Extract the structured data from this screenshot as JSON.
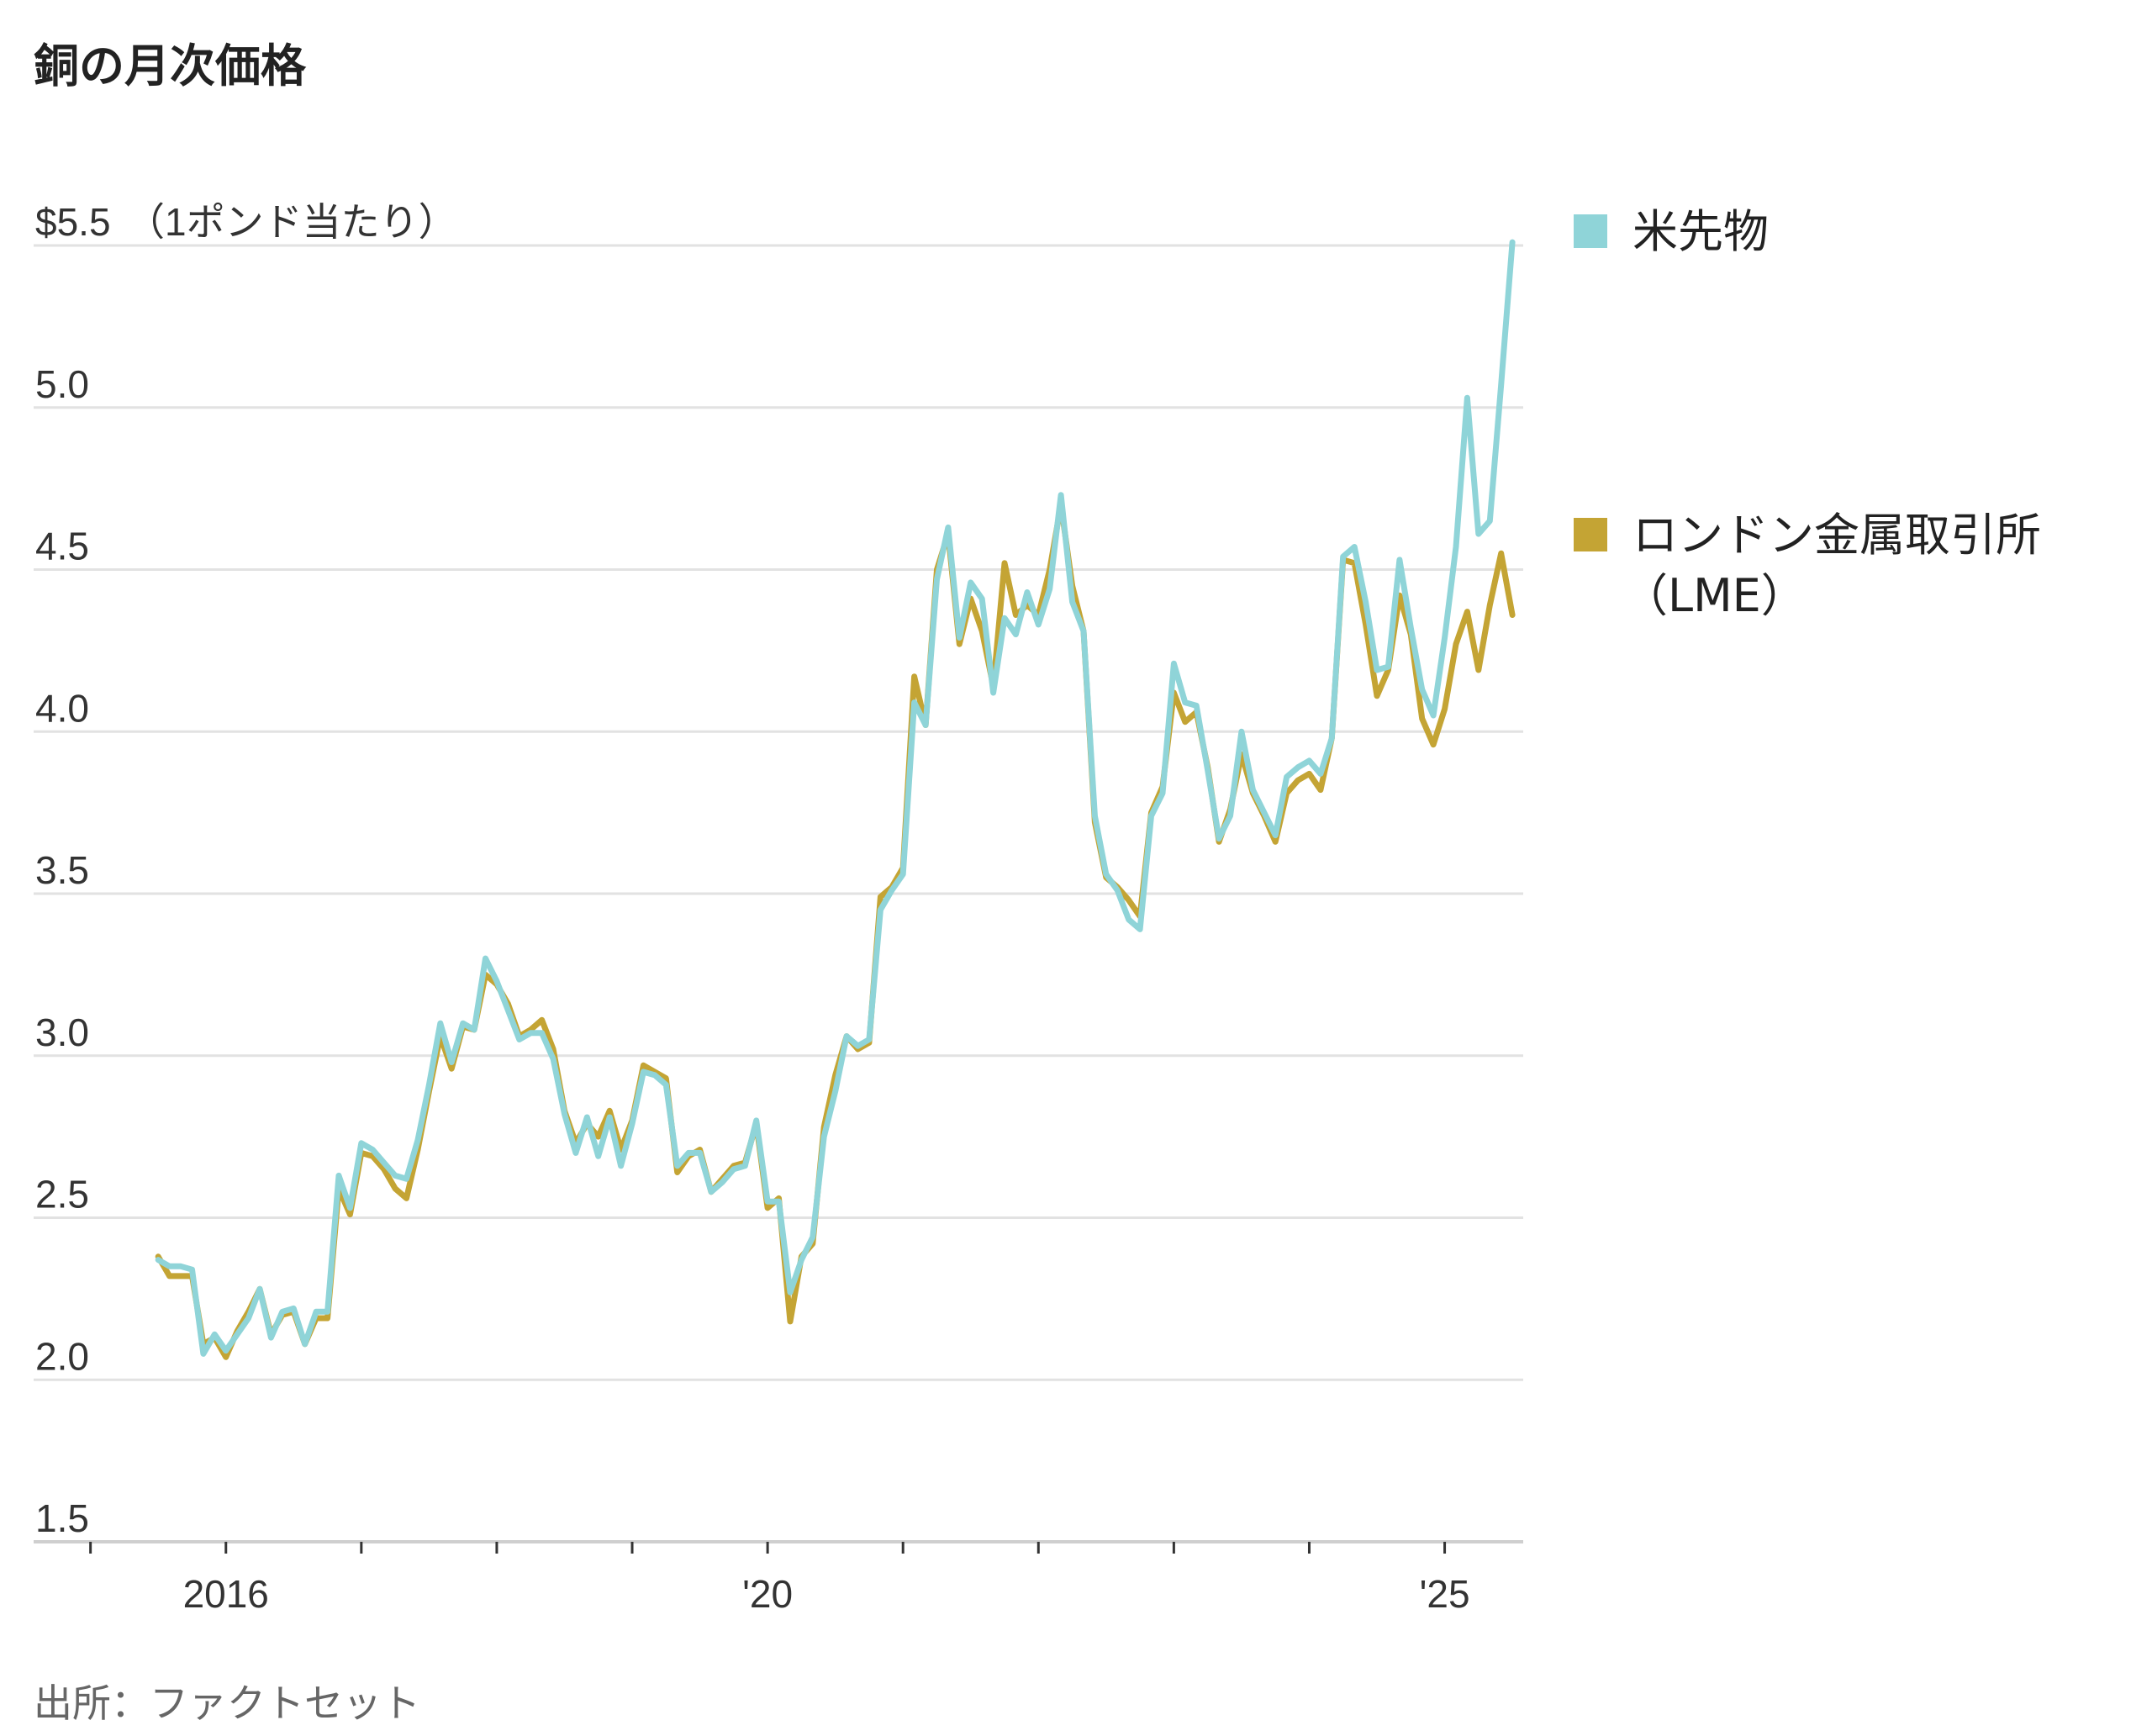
{
  "title": "銅の月次価格",
  "source": "出所：ファクトセット",
  "chart_data": {
    "type": "line",
    "title": "銅の月次価格",
    "unit_label": "（1ポンド当たり）",
    "ylim": [
      1.5,
      5.5
    ],
    "y_ticks": [
      {
        "value": 5.5,
        "label": "$5.5"
      },
      {
        "value": 5.0,
        "label": "5.0"
      },
      {
        "value": 4.5,
        "label": "4.5"
      },
      {
        "value": 4.0,
        "label": "4.0"
      },
      {
        "value": 3.5,
        "label": "3.5"
      },
      {
        "value": 3.0,
        "label": "3.0"
      },
      {
        "value": 2.5,
        "label": "2.5"
      },
      {
        "value": 2.0,
        "label": "2.0"
      },
      {
        "value": 1.5,
        "label": "1.5"
      }
    ],
    "x_range": [
      2014.58,
      2025.58
    ],
    "x_ticks": [
      2015,
      2016,
      2017,
      2018,
      2019,
      2020,
      2021,
      2022,
      2023,
      2024,
      2025
    ],
    "x_tick_labels": [
      {
        "value": 2016,
        "label": "2016"
      },
      {
        "value": 2020,
        "label": "'20"
      },
      {
        "value": 2025,
        "label": "'25"
      }
    ],
    "x_start": "2015-07",
    "legend_position": "right",
    "series": [
      {
        "name": "米先物",
        "color": "#8fd4d8",
        "values": [
          2.37,
          2.35,
          2.35,
          2.34,
          2.08,
          2.14,
          2.09,
          2.14,
          2.19,
          2.28,
          2.13,
          2.21,
          2.22,
          2.11,
          2.21,
          2.21,
          2.63,
          2.53,
          2.73,
          2.71,
          2.67,
          2.63,
          2.62,
          2.74,
          2.91,
          3.1,
          2.98,
          3.1,
          3.08,
          3.3,
          3.23,
          3.14,
          3.05,
          3.07,
          3.07,
          2.99,
          2.82,
          2.7,
          2.81,
          2.69,
          2.81,
          2.66,
          2.79,
          2.95,
          2.94,
          2.91,
          2.66,
          2.7,
          2.7,
          2.58,
          2.61,
          2.65,
          2.66,
          2.8,
          2.55,
          2.55,
          2.27,
          2.37,
          2.44,
          2.75,
          2.89,
          3.06,
          3.03,
          3.05,
          3.45,
          3.51,
          3.56,
          4.09,
          4.02,
          4.47,
          4.63,
          4.29,
          4.46,
          4.41,
          4.12,
          4.35,
          4.3,
          4.43,
          4.33,
          4.44,
          4.73,
          4.4,
          4.31,
          3.74,
          3.56,
          3.51,
          3.42,
          3.39,
          3.74,
          3.81,
          4.21,
          4.09,
          4.08,
          3.88,
          3.67,
          3.74,
          4.0,
          3.82,
          3.75,
          3.68,
          3.86,
          3.89,
          3.91,
          3.87,
          3.98,
          4.54,
          4.57,
          4.4,
          4.19,
          4.2,
          4.53,
          4.32,
          4.13,
          4.05,
          4.29,
          4.57,
          5.03,
          4.61,
          4.65,
          5.07,
          5.51
        ]
      },
      {
        "name": "ロンドン金属取引所（LME）",
        "color": "#c4a434",
        "values": [
          2.38,
          2.32,
          2.32,
          2.32,
          2.11,
          2.13,
          2.07,
          2.15,
          2.21,
          2.28,
          2.14,
          2.2,
          2.21,
          2.11,
          2.19,
          2.19,
          2.59,
          2.51,
          2.7,
          2.69,
          2.65,
          2.59,
          2.56,
          2.71,
          2.89,
          3.06,
          2.96,
          3.09,
          3.08,
          3.25,
          3.22,
          3.16,
          3.06,
          3.08,
          3.11,
          3.02,
          2.83,
          2.73,
          2.79,
          2.75,
          2.83,
          2.71,
          2.8,
          2.97,
          2.95,
          2.93,
          2.64,
          2.69,
          2.71,
          2.58,
          2.62,
          2.66,
          2.67,
          2.79,
          2.53,
          2.56,
          2.18,
          2.38,
          2.42,
          2.78,
          2.94,
          3.06,
          3.02,
          3.04,
          3.49,
          3.52,
          3.58,
          4.17,
          4.02,
          4.5,
          4.61,
          4.27,
          4.41,
          4.31,
          4.14,
          4.52,
          4.36,
          4.39,
          4.36,
          4.5,
          4.7,
          4.45,
          4.31,
          3.72,
          3.55,
          3.52,
          3.48,
          3.43,
          3.75,
          3.83,
          4.12,
          4.03,
          4.06,
          3.89,
          3.66,
          3.76,
          3.93,
          3.81,
          3.74,
          3.66,
          3.81,
          3.85,
          3.87,
          3.82,
          3.98,
          4.53,
          4.52,
          4.33,
          4.11,
          4.19,
          4.42,
          4.3,
          4.04,
          3.96,
          4.07,
          4.27,
          4.37,
          4.19,
          4.39,
          4.55,
          4.36
        ]
      }
    ]
  }
}
